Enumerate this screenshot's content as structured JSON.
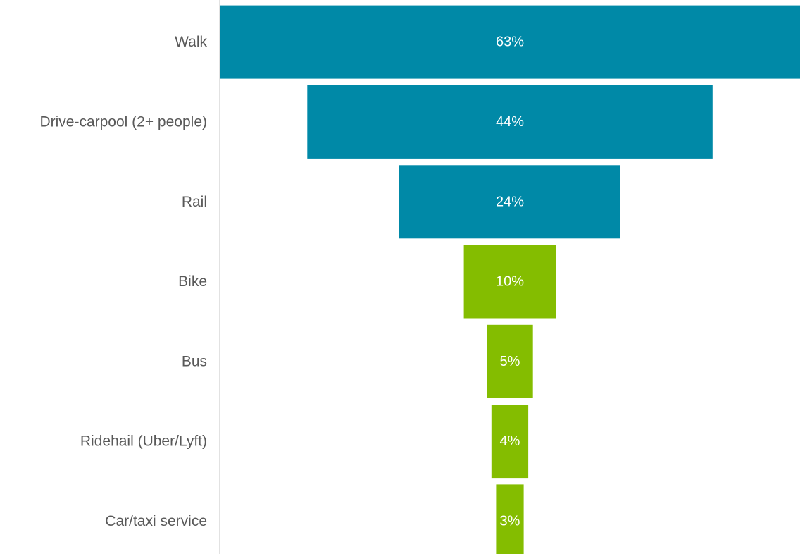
{
  "chart_data": {
    "type": "bar",
    "subtype": "funnel",
    "categories": [
      "Walk",
      "Drive-carpool (2+ people)",
      "Rail",
      "Bike",
      "Bus",
      "Ridehail (Uber/Lyft)",
      "Car/taxi service"
    ],
    "values": [
      63,
      44,
      24,
      10,
      5,
      4,
      3
    ],
    "data_labels": [
      "63%",
      "44%",
      "24%",
      "10%",
      "5%",
      "4%",
      "3%"
    ],
    "bar_colors": [
      "#0089a7",
      "#0089a7",
      "#0089a7",
      "#84bd00",
      "#84bd00",
      "#84bd00",
      "#84bd00"
    ],
    "title": "",
    "xlabel": "",
    "ylabel": "",
    "xlim": [
      0,
      63
    ],
    "grid": false,
    "legend": "none"
  }
}
